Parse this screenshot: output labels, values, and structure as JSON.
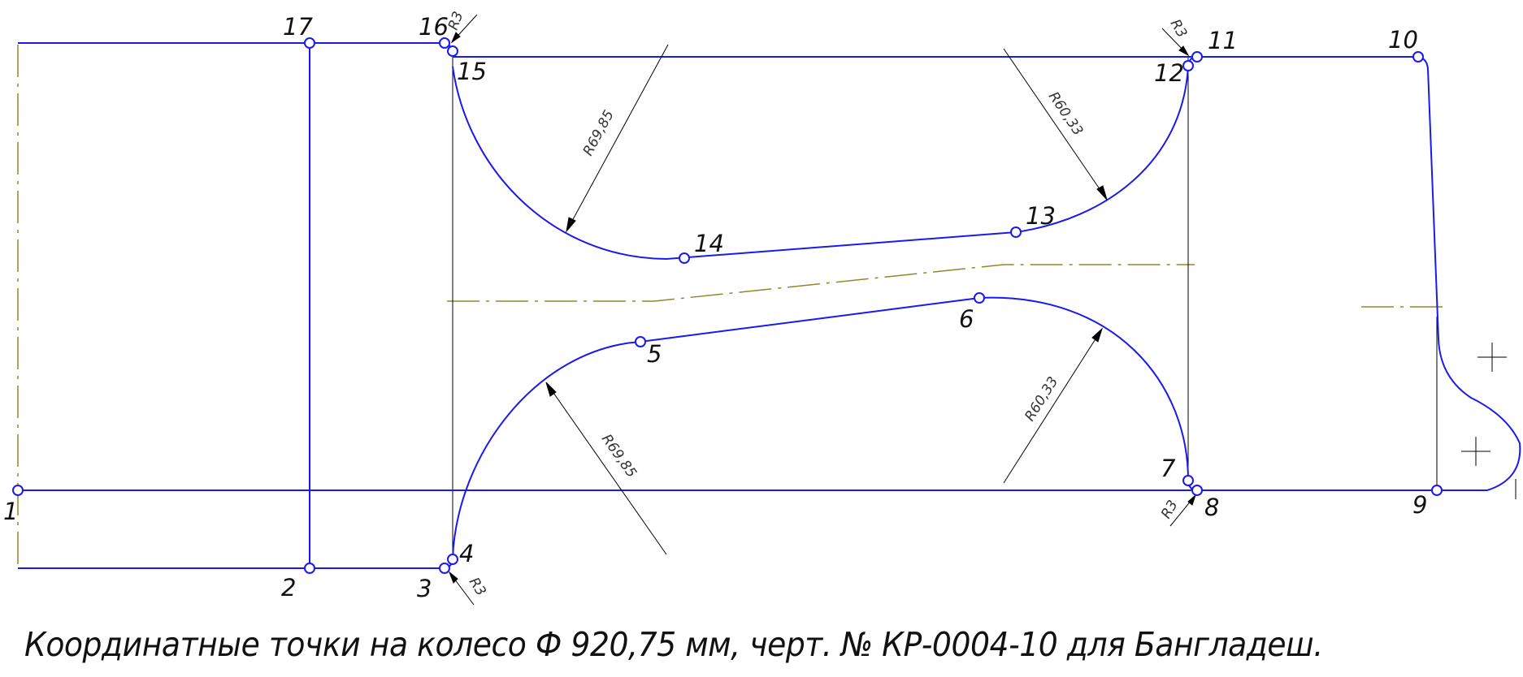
{
  "caption": "Координатные точки на колесо Ф 920,75 мм, черт. № КР-0004-10 для Бангладеш.",
  "colors": {
    "profile": "#1a1aee",
    "centerline": "#8a8a2a",
    "dimension": "#000000"
  },
  "points": [
    {
      "id": "1",
      "label": "1"
    },
    {
      "id": "2",
      "label": "2"
    },
    {
      "id": "3",
      "label": "3"
    },
    {
      "id": "4",
      "label": "4"
    },
    {
      "id": "5",
      "label": "5"
    },
    {
      "id": "6",
      "label": "6"
    },
    {
      "id": "7",
      "label": "7"
    },
    {
      "id": "8",
      "label": "8"
    },
    {
      "id": "9",
      "label": "9"
    },
    {
      "id": "10",
      "label": "10"
    },
    {
      "id": "11",
      "label": "11"
    },
    {
      "id": "12",
      "label": "12"
    },
    {
      "id": "13",
      "label": "13"
    },
    {
      "id": "14",
      "label": "14"
    },
    {
      "id": "15",
      "label": "15"
    },
    {
      "id": "16",
      "label": "16"
    },
    {
      "id": "17",
      "label": "17"
    }
  ],
  "dimensions": [
    {
      "id": "r3-top-left",
      "label": "R3"
    },
    {
      "id": "r3-top-right",
      "label": "R3"
    },
    {
      "id": "r3-bottom-left",
      "label": "R3"
    },
    {
      "id": "r3-bottom-right",
      "label": "R3"
    },
    {
      "id": "r69-top",
      "label": "R69,85"
    },
    {
      "id": "r69-bottom",
      "label": "R69,85"
    },
    {
      "id": "r60-top",
      "label": "R60,33"
    },
    {
      "id": "r60-bottom",
      "label": "R60,33"
    }
  ]
}
